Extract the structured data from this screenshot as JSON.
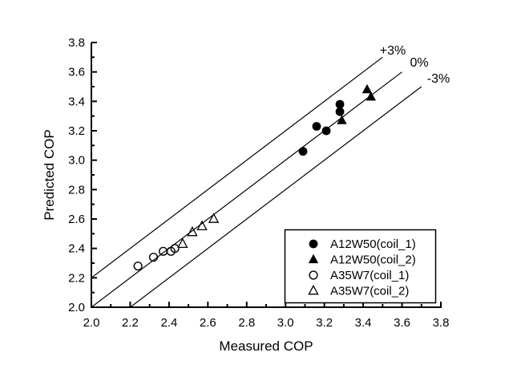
{
  "chart_data": {
    "type": "scatter",
    "title": "",
    "xlabel": "Measured COP",
    "ylabel": "Predicted COP",
    "xlim": [
      2.0,
      3.8
    ],
    "ylim": [
      2.0,
      3.8
    ],
    "major_tick_step": 0.2,
    "minor_tick_step": 0.1,
    "grid": false,
    "x_tick_labels": [
      "2.0",
      "2.2",
      "2.4",
      "2.6",
      "2.8",
      "3.0",
      "3.2",
      "3.4",
      "3.6",
      "3.8"
    ],
    "y_tick_labels": [
      "2.0",
      "2.2",
      "2.4",
      "2.6",
      "2.8",
      "3.0",
      "3.2",
      "3.4",
      "3.6",
      "3.8"
    ],
    "series": [
      {
        "name": "A12W50(coil_1)",
        "marker": "circle-filled",
        "points": [
          [
            3.09,
            3.06
          ],
          [
            3.16,
            3.23
          ],
          [
            3.21,
            3.2
          ],
          [
            3.28,
            3.33
          ],
          [
            3.28,
            3.38
          ]
        ]
      },
      {
        "name": "A12W50(coil_2)",
        "marker": "triangle-filled",
        "points": [
          [
            3.29,
            3.27
          ],
          [
            3.42,
            3.48
          ],
          [
            3.44,
            3.43
          ]
        ]
      },
      {
        "name": "A35W7(coil_1)",
        "marker": "circle-open",
        "points": [
          [
            2.24,
            2.28
          ],
          [
            2.32,
            2.34
          ],
          [
            2.37,
            2.38
          ],
          [
            2.41,
            2.38
          ],
          [
            2.43,
            2.4
          ]
        ]
      },
      {
        "name": "A35W7(coil_2)",
        "marker": "triangle-open",
        "points": [
          [
            2.47,
            2.43
          ],
          [
            2.52,
            2.51
          ],
          [
            2.57,
            2.55
          ],
          [
            2.63,
            2.6
          ]
        ]
      }
    ],
    "reference_lines": [
      {
        "label": "+3%",
        "from": [
          2.0,
          2.2
        ],
        "to": [
          3.5,
          3.7
        ]
      },
      {
        "label": "0%",
        "from": [
          2.0,
          2.0
        ],
        "to": [
          3.6,
          3.6
        ]
      },
      {
        "label": "-3%",
        "from": [
          2.2,
          2.0
        ],
        "to": [
          3.7,
          3.5
        ]
      }
    ],
    "legend": {
      "position": "bottom-right",
      "entries": [
        {
          "label": "A12W50(coil_1)",
          "marker": "circle-filled"
        },
        {
          "label": "A12W50(coil_2)",
          "marker": "triangle-filled"
        },
        {
          "label": "A35W7(coil_1)",
          "marker": "circle-open"
        },
        {
          "label": "A35W7(coil_2)",
          "marker": "triangle-open"
        }
      ]
    },
    "colors": {
      "foreground": "#000000",
      "background": "#ffffff"
    }
  }
}
